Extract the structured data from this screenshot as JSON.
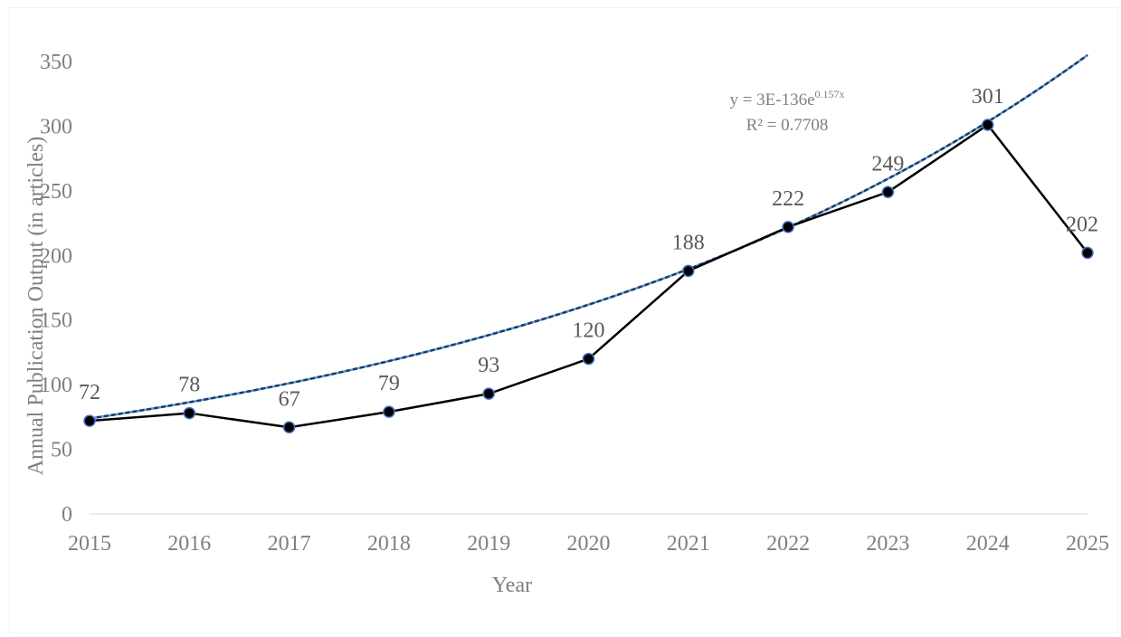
{
  "chart_data": {
    "type": "line",
    "title": "",
    "xlabel": "Year",
    "ylabel": "Annual Publication Output (in articles)",
    "x": [
      "2015",
      "2016",
      "2017",
      "2018",
      "2019",
      "2020",
      "2021",
      "2022",
      "2023",
      "2024",
      "2025"
    ],
    "series": [
      {
        "values": [
          72,
          78,
          67,
          79,
          93,
          120,
          188,
          222,
          249,
          301,
          202
        ],
        "color": "#000000",
        "marker_fill": "#000000",
        "marker_edge": "#4472c4",
        "data_labels": [
          "72",
          "78",
          "67",
          "79",
          "93",
          "120",
          "188",
          "222",
          "249",
          "301",
          "202"
        ]
      }
    ],
    "trendline": {
      "type": "exponential",
      "equation_prefix": "y = 3E-136e",
      "equation_exponent": "0.157x",
      "r_squared": "R² = 0.7708",
      "a": 3e-136,
      "b": 0.157,
      "color": "#1f3864"
    },
    "ylim": [
      0,
      350
    ],
    "yticks": [
      "0",
      "50",
      "100",
      "150",
      "200",
      "250",
      "300",
      "350"
    ],
    "grid": false,
    "legend": "none"
  }
}
